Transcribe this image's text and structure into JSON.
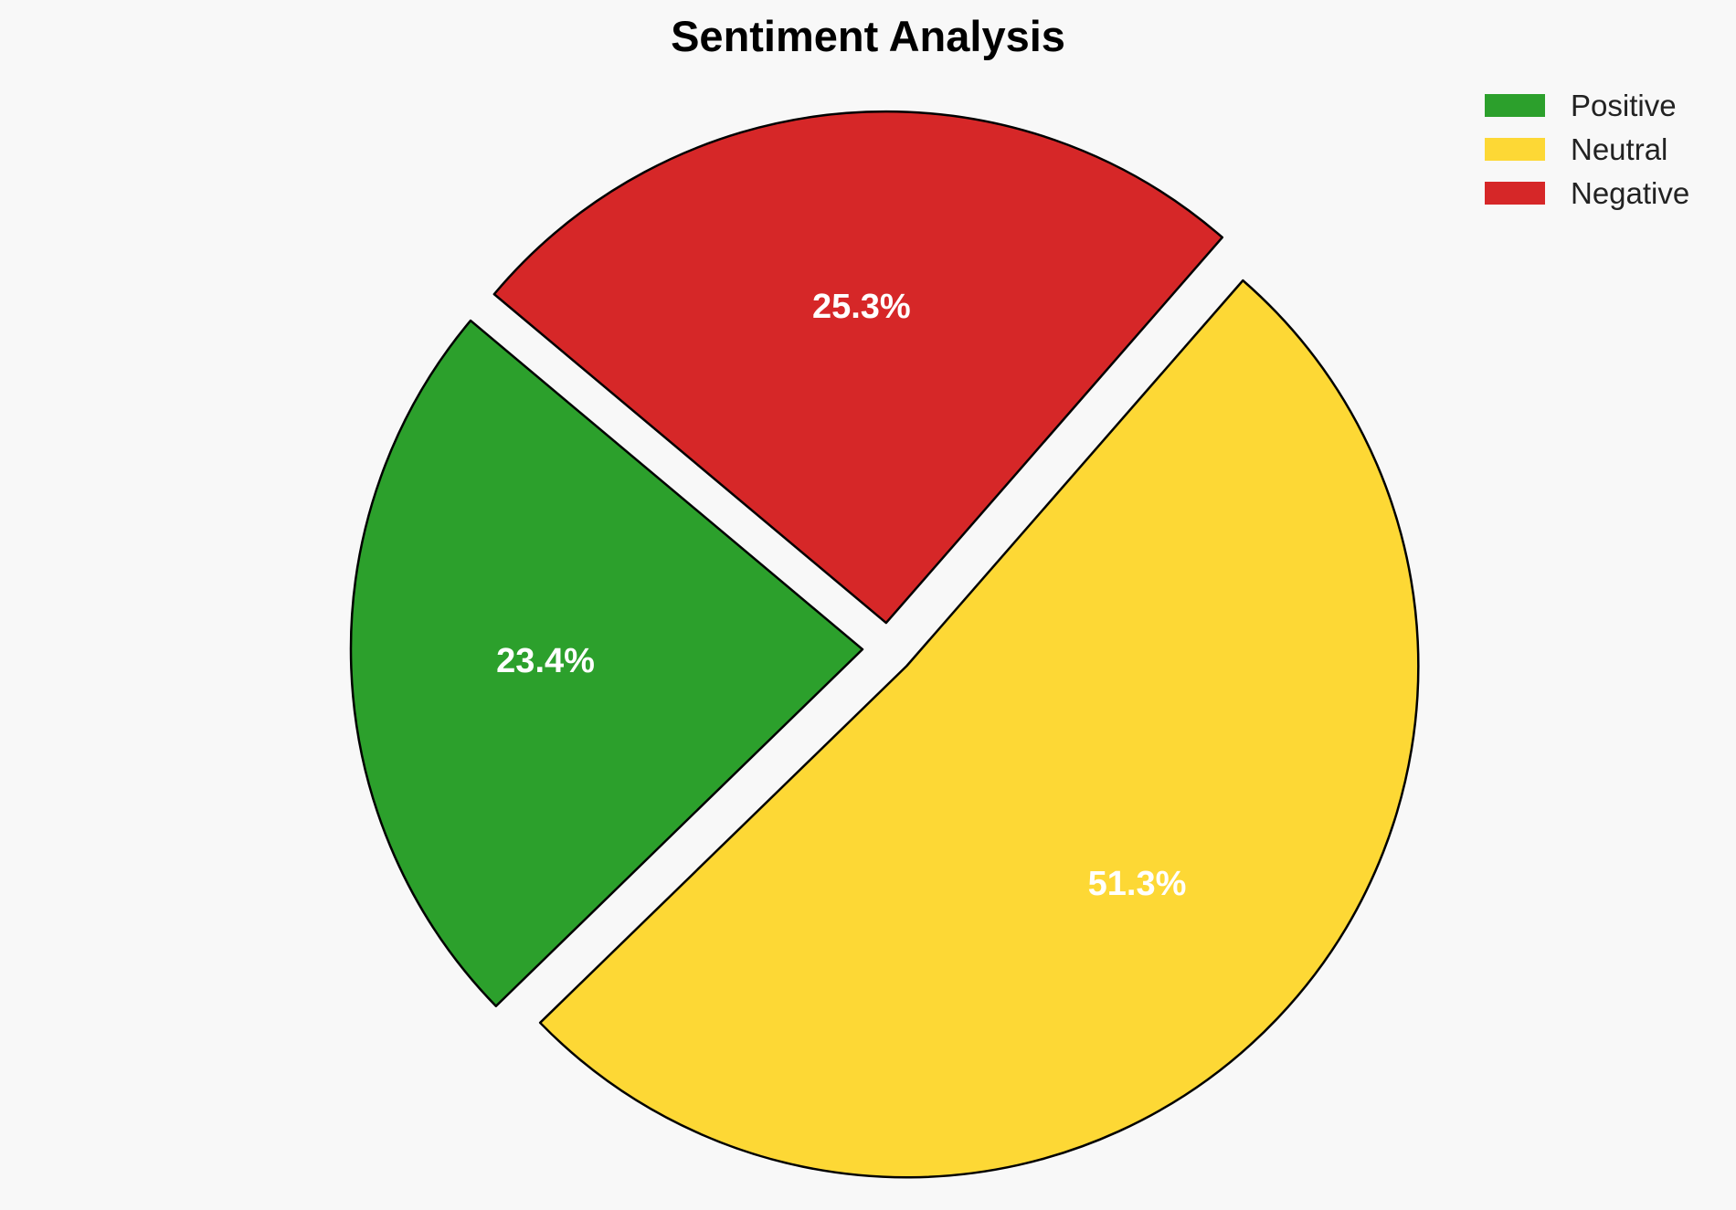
{
  "chart_data": {
    "type": "pie",
    "title": "Sentiment Analysis",
    "categories": [
      "Positive",
      "Neutral",
      "Negative"
    ],
    "values": [
      23.4,
      51.3,
      25.3
    ],
    "labels": [
      "23.4%",
      "51.3%",
      "25.3%"
    ],
    "colors": [
      "#2ca02c",
      "#fdd835",
      "#d62728"
    ],
    "exploded": true,
    "legend_position": "top-right"
  }
}
